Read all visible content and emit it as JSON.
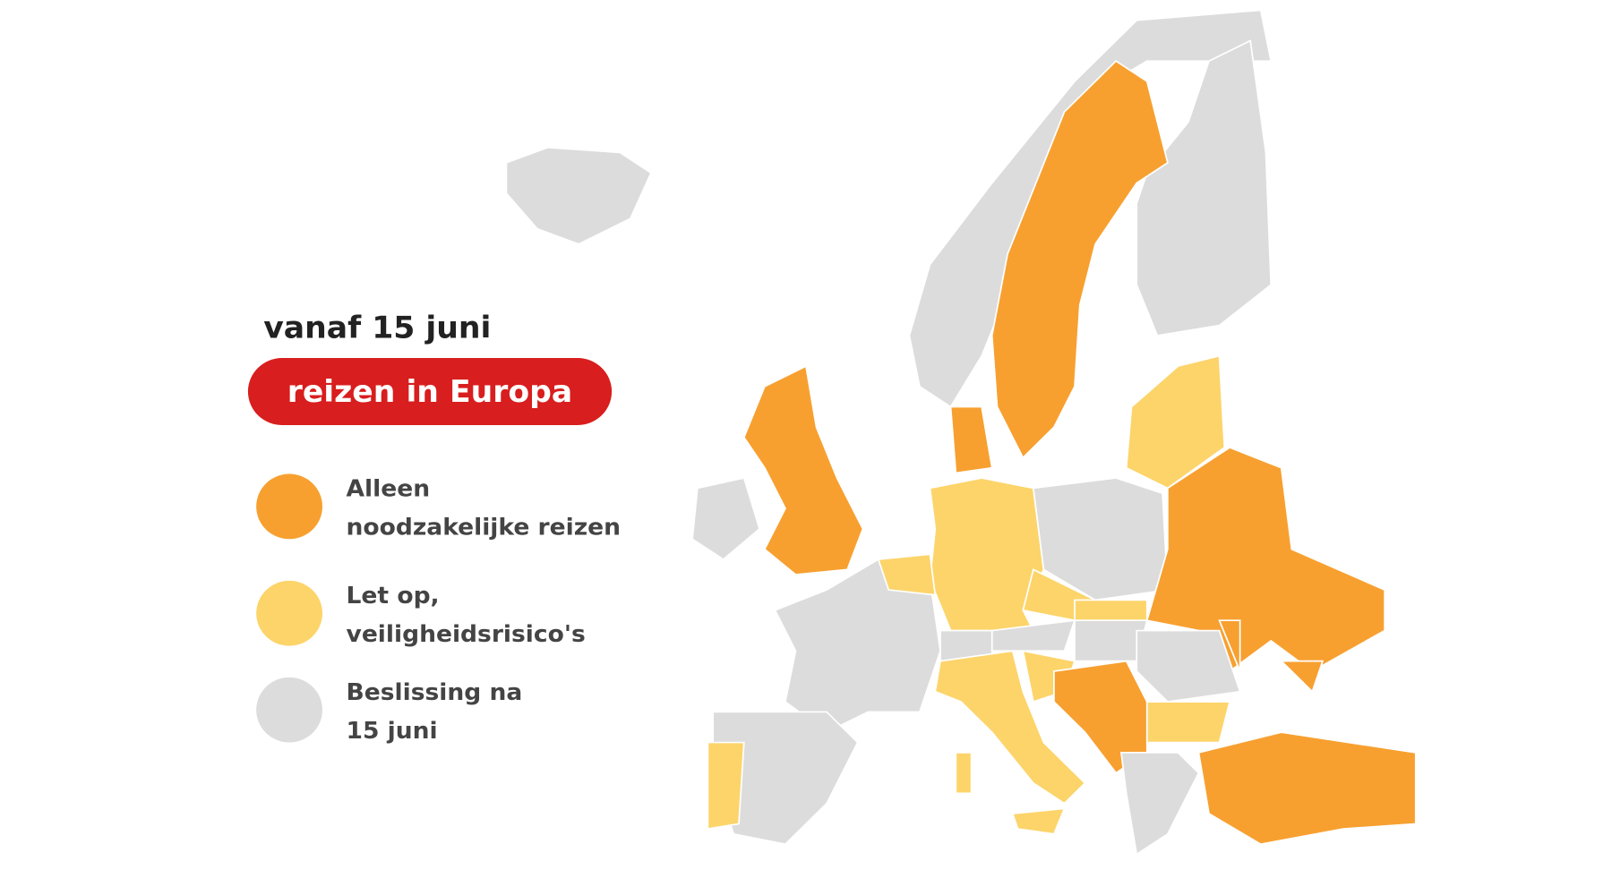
{
  "header": {
    "title": "vanaf 15 juni",
    "badge": "reizen in Europa"
  },
  "legend": {
    "items": [
      {
        "lines": [
          "Alleen",
          "noodzakelijke reizen"
        ],
        "color": "#f7a030"
      },
      {
        "lines": [
          "Let op,",
          "veiligheidsrisico's"
        ],
        "color": "#fcd46a"
      },
      {
        "lines": [
          "Beslissing na",
          "15 juni"
        ],
        "color": "#dcdcdc"
      }
    ]
  }
}
